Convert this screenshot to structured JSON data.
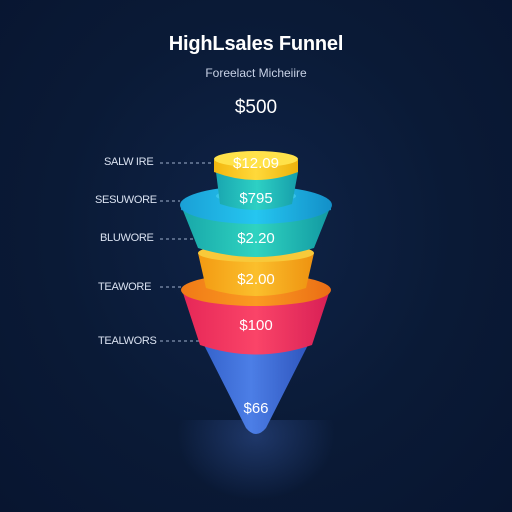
{
  "header": {
    "title": "HighLsales Funnel",
    "subtitle": "Foreelact Micheiire",
    "top_value": "$500"
  },
  "stages": [
    {
      "label": "SALW IRE",
      "value": "$12.09"
    },
    {
      "label": "SESUWORE",
      "value": "$795"
    },
    {
      "label": "BLUWORE",
      "value": "$2.20"
    },
    {
      "label": "TEAWORE",
      "value": "$2.00"
    },
    {
      "label": "TEALWORS",
      "value": "$100"
    },
    {
      "label": "",
      "value": "$66"
    }
  ],
  "colors": {
    "background": "#0a1a36",
    "yellow": "#f7c623",
    "teal": "#22c4c0",
    "cyan": "#1cb8e8",
    "orange": "#f7a51e",
    "pink": "#f0335c",
    "blue": "#3f6fd8"
  }
}
